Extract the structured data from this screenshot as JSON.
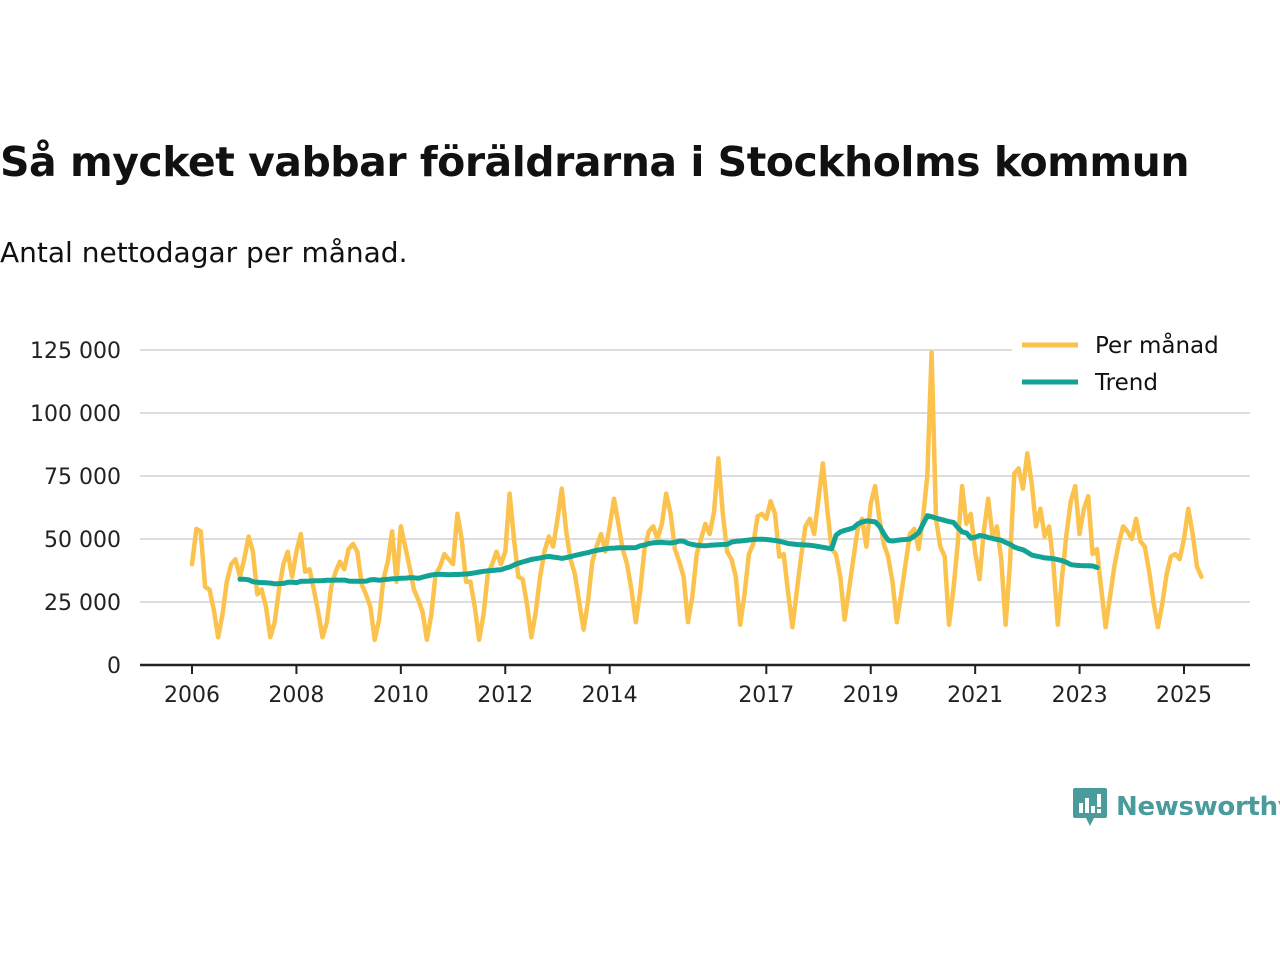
{
  "header": {
    "title": "Så mycket vabbar föräldrarna i Stockholms kommun",
    "subtitle": "Antal nettodagar per månad."
  },
  "brand": {
    "name": "Newsworthy",
    "icon": "newsworthy-logo-icon",
    "color": "#4a9b9b"
  },
  "colors": {
    "monthly": "#fcc24e",
    "trend": "#13a396",
    "grid": "#dddddd",
    "axis": "#222222"
  },
  "chart_data": {
    "type": "line",
    "title": "Så mycket vabbar föräldrarna i Stockholms kommun",
    "subtitle": "Antal nettodagar per månad.",
    "xlabel": "",
    "ylabel": "",
    "ylim": [
      0,
      125000
    ],
    "xlim": [
      2005.5,
      2026.2
    ],
    "grid": true,
    "legend_position": "top-right",
    "y_ticks": [
      0,
      25000,
      50000,
      75000,
      100000,
      125000
    ],
    "y_tick_labels": [
      "0",
      "25 000",
      "50 000",
      "75 000",
      "100 000",
      "125 000"
    ],
    "x_ticks": [
      2006,
      2008,
      2010,
      2012,
      2014,
      2017,
      2019,
      2021,
      2023,
      2025
    ],
    "x_tick_labels": [
      "2006",
      "2008",
      "2010",
      "2012",
      "2014",
      "2017",
      "2019",
      "2021",
      "2023",
      "2025"
    ],
    "series": [
      {
        "name": "Per månad",
        "color": "#fcc24e",
        "start": 2006.0,
        "step": 0.08333,
        "values": [
          40000,
          54000,
          53000,
          31000,
          30000,
          22000,
          11000,
          20000,
          33000,
          40000,
          42000,
          35000,
          42000,
          51000,
          45000,
          28000,
          30000,
          23000,
          11000,
          17000,
          30000,
          40000,
          45000,
          35000,
          45000,
          52000,
          37000,
          38000,
          30000,
          21000,
          11000,
          17000,
          31000,
          37000,
          41000,
          38000,
          46000,
          48000,
          45000,
          32000,
          28000,
          23000,
          10000,
          18000,
          34000,
          41000,
          53000,
          33000,
          55000,
          47000,
          39000,
          30000,
          26000,
          21000,
          10000,
          20000,
          36000,
          39000,
          44000,
          42000,
          40000,
          60000,
          50000,
          33000,
          33000,
          23000,
          10000,
          20000,
          36000,
          40000,
          45000,
          40000,
          45000,
          68000,
          50000,
          35000,
          34000,
          24000,
          11000,
          21000,
          35000,
          45000,
          51000,
          47000,
          58000,
          70000,
          53000,
          42000,
          36000,
          25000,
          14000,
          25000,
          41000,
          47000,
          52000,
          45000,
          55000,
          66000,
          56000,
          46000,
          40000,
          30000,
          17000,
          29000,
          46000,
          53000,
          55000,
          50000,
          56000,
          68000,
          60000,
          46000,
          41000,
          35000,
          17000,
          27000,
          44000,
          50000,
          56000,
          52000,
          61000,
          82000,
          60000,
          45000,
          42000,
          35000,
          16000,
          28000,
          44000,
          48000,
          59000,
          60000,
          58000,
          65000,
          60000,
          43000,
          44000,
          29000,
          15000,
          29000,
          43000,
          55000,
          58000,
          52000,
          66000,
          80000,
          62000,
          46000,
          44000,
          35000,
          18000,
          30000,
          42000,
          54000,
          58000,
          47000,
          64000,
          71000,
          58000,
          48000,
          43000,
          33000,
          17000,
          28000,
          40000,
          52000,
          54000,
          46000,
          58000,
          75000,
          124000,
          58000,
          47000,
          43000,
          16000,
          30000,
          48000,
          71000,
          56000,
          60000,
          45000,
          34000,
          53000,
          66000,
          51000,
          55000,
          42000,
          16000,
          40000,
          76000,
          78000,
          70000,
          84000,
          72000,
          55000,
          62000,
          51000,
          55000,
          40000,
          16000,
          35000,
          52000,
          65000,
          71000,
          52000,
          62000,
          67000,
          44000,
          46000,
          30000,
          15000,
          27000,
          39000,
          48000,
          55000,
          53000,
          50000,
          58000,
          49000,
          47000,
          37000,
          25000,
          15000,
          24000,
          36000,
          43000,
          44000,
          42000,
          50000,
          62000,
          52000,
          39000,
          35000
        ]
      },
      {
        "name": "Trend",
        "color": "#13a396",
        "start": 2006.92,
        "step": 0.08333,
        "values": [
          34000,
          34000,
          33800,
          33000,
          32800,
          32700,
          32600,
          32500,
          32200,
          32300,
          32400,
          32800,
          32900,
          32700,
          33200,
          33200,
          33300,
          33400,
          33400,
          33500,
          33600,
          33600,
          33700,
          33700,
          33700,
          33300,
          33200,
          33200,
          33200,
          33300,
          33800,
          33900,
          33600,
          33900,
          34000,
          34200,
          34300,
          34400,
          34500,
          34600,
          34600,
          34400,
          34900,
          35300,
          35700,
          35900,
          36000,
          35900,
          35800,
          35900,
          35900,
          36000,
          36100,
          36300,
          36600,
          36900,
          37200,
          37400,
          37500,
          37700,
          37800,
          38400,
          38900,
          39700,
          40400,
          40900,
          41400,
          41900,
          42200,
          42500,
          42800,
          43100,
          42800,
          42600,
          42300,
          42600,
          43000,
          43500,
          43900,
          44300,
          44600,
          45100,
          45500,
          45800,
          46100,
          46300,
          46400,
          46500,
          46500,
          46500,
          46500,
          46600,
          47300,
          47600,
          48200,
          48500,
          48600,
          48700,
          48500,
          48400,
          48700,
          49200,
          49100,
          48200,
          47800,
          47500,
          47400,
          47300,
          47500,
          47600,
          47700,
          47800,
          47900,
          48800,
          49100,
          49200,
          49400,
          49600,
          49800,
          49900,
          49900,
          49800,
          49600,
          49400,
          49100,
          48700,
          48200,
          48000,
          47800,
          47700,
          47600,
          47500,
          47300,
          47000,
          46700,
          46400,
          46200,
          51500,
          52800,
          53400,
          53900,
          54500,
          56000,
          56800,
          57200,
          57000,
          56800,
          55000,
          52000,
          49500,
          49200,
          49500,
          49700,
          49800,
          50000,
          51200,
          52500,
          56000,
          59300,
          58800,
          58300,
          57800,
          57400,
          56900,
          56600,
          54500,
          52800,
          52400,
          50300,
          50700,
          51400,
          51100,
          50600,
          50200,
          49800,
          49500,
          48600,
          47900,
          46800,
          46200,
          45700,
          44700,
          43600,
          43200,
          42900,
          42500,
          42400,
          42200,
          41800,
          41400,
          40700,
          39800,
          39600,
          39500,
          39400,
          39400,
          39300,
          38700
        ]
      }
    ]
  }
}
